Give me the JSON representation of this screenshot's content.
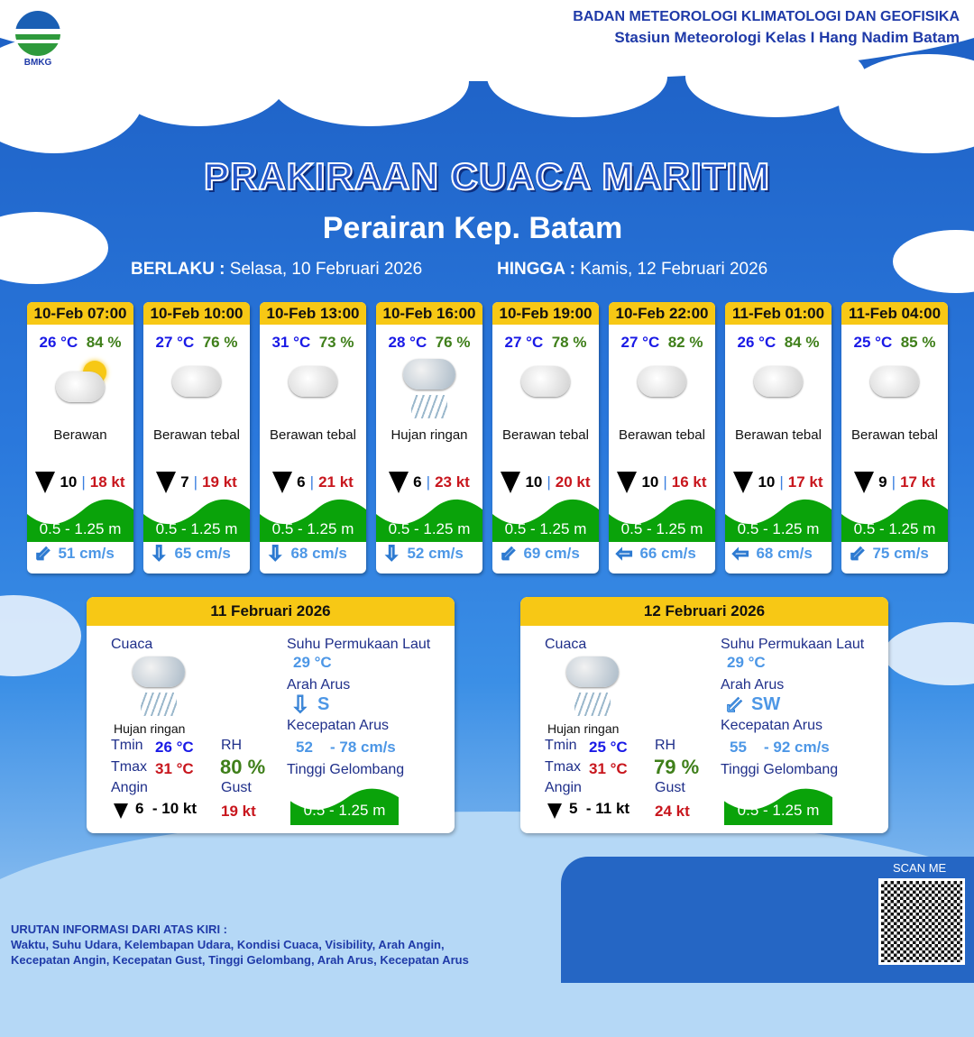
{
  "header": {
    "logo_text": "BMKG",
    "org_line1": "BADAN METEOROLOGI KLIMATOLOGI DAN GEOFISIKA",
    "org_line2": "Stasiun Meteorologi Kelas I Hang Nadim Batam"
  },
  "title": "PRAKIRAAN CUACA MARITIM",
  "subtitle": "Perairan Kep. Batam",
  "validity": {
    "from_label": "BERLAKU :",
    "from_value": "Selasa, 10 Februari 2026",
    "to_label": "HINGGA :",
    "to_value": "Kamis, 12 Februari 2026"
  },
  "colors": {
    "header_yellow": "#f7c815",
    "wave_green": "#0aa30a",
    "temp_blue": "#1a1ae6",
    "rh_green": "#3f7f1a",
    "gust_red": "#c8161d",
    "current_blue": "#4d97e6"
  },
  "forecasts": [
    {
      "time": "10-Feb 07:00",
      "temp": "26 °C",
      "rh": "84 %",
      "icon": "partly-cloudy-icon",
      "condition": "Berawan",
      "wind": "10",
      "gust": "18 kt",
      "wave": "0.5 - 1.25 m",
      "current_dir": "southwest-arrow-icon",
      "current": "51 cm/s"
    },
    {
      "time": "10-Feb 10:00",
      "temp": "27 °C",
      "rh": "76 %",
      "icon": "cloud-icon",
      "condition": "Berawan tebal",
      "wind": "7",
      "gust": "19 kt",
      "wave": "0.5 - 1.25 m",
      "current_dir": "south-arrow-icon",
      "current": "65 cm/s"
    },
    {
      "time": "10-Feb 13:00",
      "temp": "31 °C",
      "rh": "73 %",
      "icon": "cloud-icon",
      "condition": "Berawan tebal",
      "wind": "6",
      "gust": "21 kt",
      "wave": "0.5 - 1.25 m",
      "current_dir": "south-arrow-icon",
      "current": "68 cm/s"
    },
    {
      "time": "10-Feb 16:00",
      "temp": "28 °C",
      "rh": "76 %",
      "icon": "rain-icon",
      "condition": "Hujan ringan",
      "wind": "6",
      "gust": "23 kt",
      "wave": "0.5 - 1.25 m",
      "current_dir": "south-arrow-icon",
      "current": "52 cm/s"
    },
    {
      "time": "10-Feb 19:00",
      "temp": "27 °C",
      "rh": "78 %",
      "icon": "cloud-icon",
      "condition": "Berawan tebal",
      "wind": "10",
      "gust": "20 kt",
      "wave": "0.5 - 1.25 m",
      "current_dir": "southwest-arrow-icon",
      "current": "69 cm/s"
    },
    {
      "time": "10-Feb 22:00",
      "temp": "27 °C",
      "rh": "82 %",
      "icon": "cloud-icon",
      "condition": "Berawan tebal",
      "wind": "10",
      "gust": "16 kt",
      "wave": "0.5 - 1.25 m",
      "current_dir": "west-arrow-icon",
      "current": "66 cm/s"
    },
    {
      "time": "11-Feb 01:00",
      "temp": "26 °C",
      "rh": "84 %",
      "icon": "cloud-icon",
      "condition": "Berawan tebal",
      "wind": "10",
      "gust": "17 kt",
      "wave": "0.5 - 1.25 m",
      "current_dir": "west-arrow-icon",
      "current": "68 cm/s"
    },
    {
      "time": "11-Feb 04:00",
      "temp": "25 °C",
      "rh": "85 %",
      "icon": "cloud-icon",
      "condition": "Berawan tebal",
      "wind": "9",
      "gust": "17 kt",
      "wave": "0.5 - 1.25 m",
      "current_dir": "southwest-arrow-icon",
      "current": "75 cm/s"
    }
  ],
  "labels": {
    "cuaca": "Cuaca",
    "sst": "Suhu Permukaan Laut",
    "arah_arus": "Arah Arus",
    "kecepatan_arus": "Kecepatan Arus",
    "tinggi_gelombang": "Tinggi Gelombang",
    "tmin": "Tmin",
    "tmax": "Tmax",
    "rh": "RH",
    "angin": "Angin",
    "gust": "Gust"
  },
  "daily": [
    {
      "date": "11 Februari 2026",
      "condition": "Hujan ringan",
      "tmin": "26 °C",
      "tmax": "31 °C",
      "rh": "80 %",
      "wind": "6  - 10 kt",
      "gust": "19 kt",
      "sst": "29 °C",
      "current_dir": "S",
      "current_arrow": "south-arrow-icon",
      "current_min": "52",
      "current_max": "- 78 cm/s",
      "wave": "0.5 - 1.25 m"
    },
    {
      "date": "12 Februari 2026",
      "condition": "Hujan ringan",
      "tmin": "25 °C",
      "tmax": "31 °C",
      "rh": "79 %",
      "wind": "5  - 11 kt",
      "gust": "24 kt",
      "sst": "29 °C",
      "current_dir": "SW",
      "current_arrow": "southwest-arrow-icon",
      "current_min": "55",
      "current_max": "- 92 cm/s",
      "wave": "0.5 - 1.25 m"
    }
  ],
  "footer": {
    "heading": "URUTAN INFORMASI DARI ATAS KIRI :",
    "line1": "Waktu, Suhu Udara, Kelembapan Udara, Kondisi Cuaca, Visibility, Arah Angin,",
    "line2": "Kecepatan Angin, Kecepatan Gust, Tinggi Gelombang, Arah Arus, Kecepatan Arus",
    "scan": "SCAN ME"
  }
}
